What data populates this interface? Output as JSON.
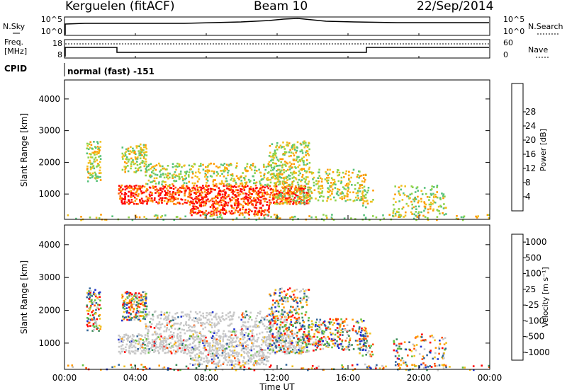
{
  "header": {
    "station": "Kerguelen (fitACF)",
    "beam": "Beam 10",
    "date": "22/Sep/2014"
  },
  "panels": {
    "nsky": {
      "label": "N.Sky",
      "ticks_left": [
        "10^5",
        "10^0"
      ],
      "ticks_right": [
        "10^5",
        "10^0"
      ],
      "right_label": "N.Search"
    },
    "freq": {
      "label_line1": "Freq.",
      "label_line2": "[MHz]",
      "ticks_left": [
        "18",
        "8"
      ],
      "ticks_right": [
        "60",
        "0"
      ],
      "right_label": "Nave"
    },
    "cpid": {
      "label": "CPID",
      "value": "normal (fast) -151"
    }
  },
  "chart_data": [
    {
      "type": "heatmap",
      "name": "power",
      "ylabel": "Slant Range [km]",
      "yticks": [
        "1000",
        "2000",
        "3000",
        "4000"
      ],
      "ylim": [
        200,
        4600
      ],
      "colorbar_label": "Power [dB]",
      "colorbar_ticks": [
        "4",
        "8",
        "12",
        "16",
        "20",
        "24",
        "28"
      ],
      "colors": [
        "#0000ff",
        "#3a5fb8",
        "#4e9a7a",
        "#57c27a",
        "#8ed34a",
        "#f0c020",
        "#ff9900",
        "#ff6000",
        "#ff0000"
      ]
    },
    {
      "type": "heatmap",
      "name": "velocity",
      "ylabel": "Slant Range [km]",
      "yticks": [
        "1000",
        "2000",
        "3000",
        "4000"
      ],
      "ylim": [
        200,
        4600
      ],
      "colorbar_label": "Velocity [m s⁻¹]",
      "colorbar_ticks": [
        "1000",
        "500",
        "100",
        "25",
        "-25",
        "-100",
        "-500",
        "-1000"
      ],
      "colors": [
        "#2233cc",
        "#336699",
        "#3c8c5a",
        "#66c040",
        "#c8c8c8",
        "#f0c020",
        "#ff9900",
        "#ff5000",
        "#ff0000"
      ]
    }
  ],
  "xaxis": {
    "ticks": [
      "00:00",
      "04:00",
      "08:00",
      "12:00",
      "16:00",
      "20:00",
      "00:00"
    ],
    "label": "Time UT",
    "range_hours": [
      0,
      24
    ]
  }
}
